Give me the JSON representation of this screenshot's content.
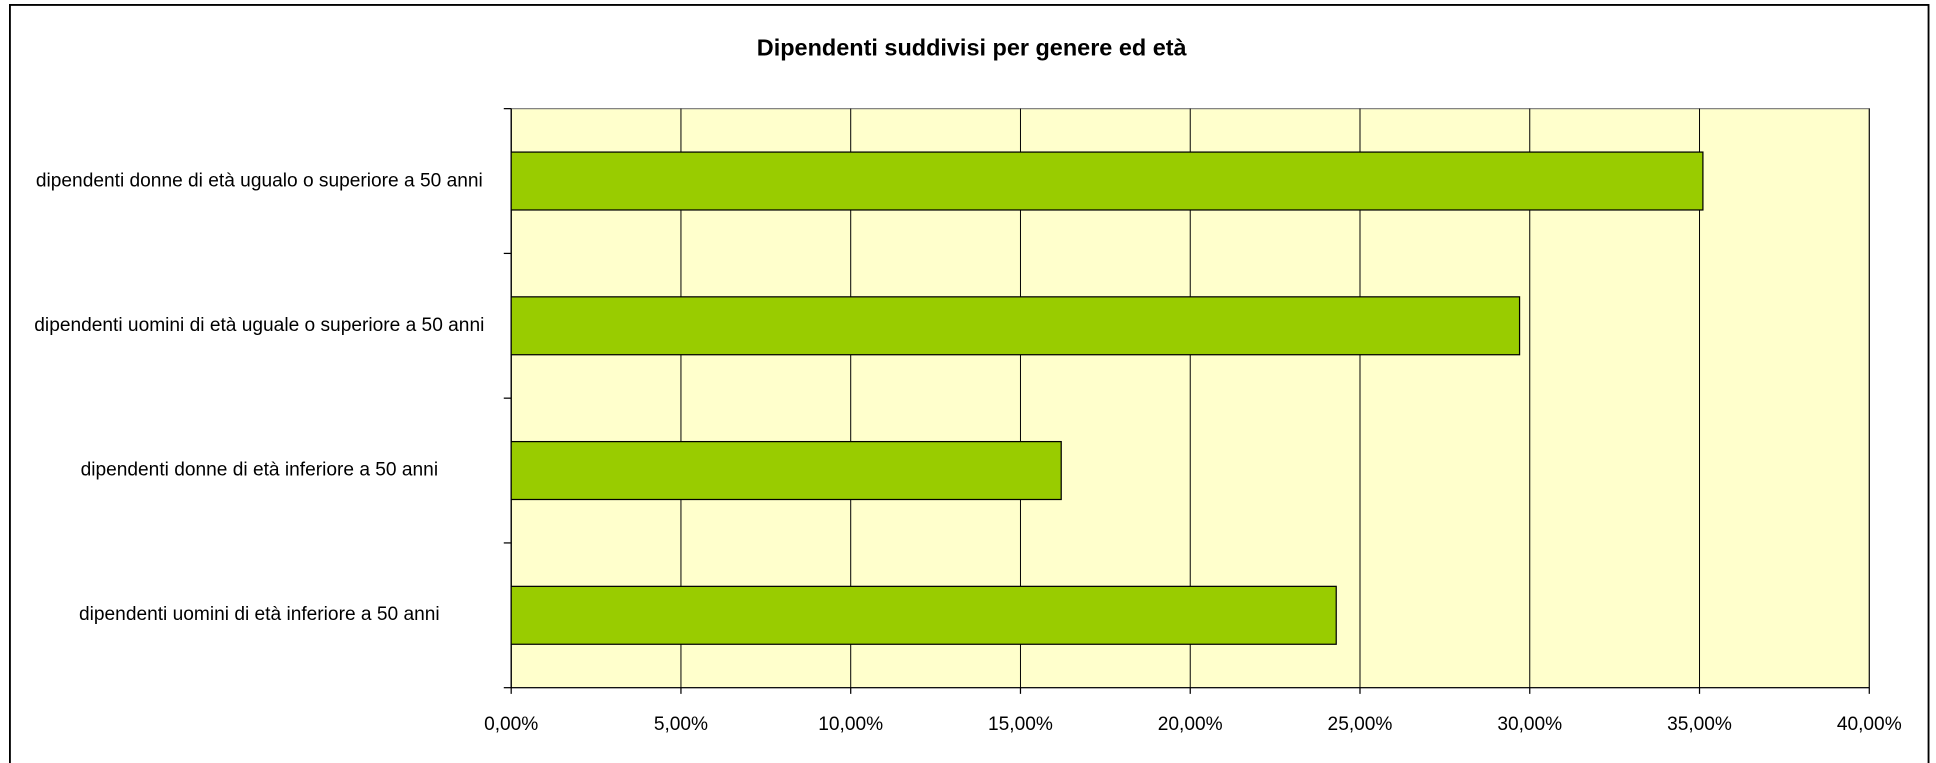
{
  "chart_data": {
    "type": "barh",
    "title": "Dipendenti suddivisi per genere ed età",
    "categories": [
      "dipendenti donne di età ugualo o superiore a 50 anni",
      "dipendenti uomini di età uguale o superiore a 50 anni",
      "dipendenti donne di età inferiore a 50 anni",
      "dipendenti uomini di età inferiore a 50 anni"
    ],
    "values": [
      35.1,
      29.7,
      16.2,
      24.3
    ],
    "color": "#99cc00",
    "plot_background": "#ffffcc",
    "xlim": [
      0,
      40
    ],
    "xticks": [
      {
        "value": 0,
        "label": "0,00%"
      },
      {
        "value": 5,
        "label": "5,00%"
      },
      {
        "value": 10,
        "label": "10,00%"
      },
      {
        "value": 15,
        "label": "15,00%"
      },
      {
        "value": 20,
        "label": "20,00%"
      },
      {
        "value": 25,
        "label": "25,00%"
      },
      {
        "value": 30,
        "label": "30,00%"
      },
      {
        "value": 35,
        "label": "35,00%"
      },
      {
        "value": 40,
        "label": "40,00%"
      }
    ],
    "grid": true
  }
}
